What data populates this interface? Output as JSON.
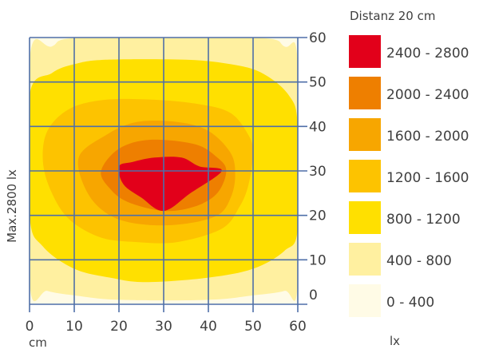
{
  "chart_data": {
    "type": "heatmap",
    "title": "",
    "legend_title": "Distanz 20 cm",
    "legend_unit": "lx",
    "ylabel": "Max.2800 lx",
    "x_unit_label": "cm",
    "x_ticks": [
      "0",
      "10",
      "20",
      "30",
      "40",
      "50",
      "60"
    ],
    "y_ticks": [
      "0",
      "10",
      "20",
      "30",
      "40",
      "50",
      "60"
    ],
    "xlim": [
      0,
      60
    ],
    "ylim": [
      0,
      60
    ],
    "grid": true,
    "legend_position": "right",
    "max_value": 2800,
    "levels": [
      {
        "label": "2400 - 2800",
        "min": 2400,
        "max": 2800,
        "color": "#e2001a"
      },
      {
        "label": "2000 - 2400",
        "min": 2000,
        "max": 2400,
        "color": "#ee7f00"
      },
      {
        "label": "1600 - 2000",
        "min": 1600,
        "max": 2000,
        "color": "#f7a600"
      },
      {
        "label": "1200 - 1600",
        "min": 1200,
        "max": 1600,
        "color": "#fdc300"
      },
      {
        "label": "800 - 1200",
        "min": 800,
        "max": 1200,
        "color": "#ffe000"
      },
      {
        "label": "400 - 800",
        "min": 400,
        "max": 800,
        "color": "#fff0a0"
      },
      {
        "label": "0 - 400",
        "min": 0,
        "max": 400,
        "color": "#fffbe6"
      }
    ],
    "contours": [
      {
        "range": "0 - 400",
        "points": [
          [
            0,
            -2
          ],
          [
            60,
            -2
          ],
          [
            60,
            60
          ],
          [
            0,
            60
          ]
        ]
      },
      {
        "range": "400 - 800",
        "points": [
          [
            0,
            55
          ],
          [
            5,
            58
          ],
          [
            12,
            60
          ],
          [
            50,
            60
          ],
          [
            57,
            58
          ],
          [
            60,
            54
          ],
          [
            60,
            5
          ],
          [
            57,
            3
          ],
          [
            50,
            2
          ],
          [
            40,
            1
          ],
          [
            20,
            1
          ],
          [
            10,
            2
          ],
          [
            4,
            3
          ],
          [
            0,
            5
          ]
        ]
      },
      {
        "range": "800 - 1200",
        "points": [
          [
            0,
            47
          ],
          [
            5,
            52
          ],
          [
            10,
            54
          ],
          [
            17,
            55
          ],
          [
            35,
            55
          ],
          [
            45,
            54
          ],
          [
            52,
            52
          ],
          [
            58,
            47
          ],
          [
            60,
            40
          ],
          [
            60,
            17
          ],
          [
            57,
            12
          ],
          [
            50,
            8
          ],
          [
            40,
            6
          ],
          [
            26,
            5
          ],
          [
            18,
            6
          ],
          [
            10,
            8
          ],
          [
            3,
            13
          ],
          [
            0,
            20
          ]
        ]
      },
      {
        "range": "1200 - 1600",
        "points": [
          [
            4,
            39
          ],
          [
            9,
            44
          ],
          [
            17,
            46
          ],
          [
            28,
            46
          ],
          [
            38,
            45
          ],
          [
            45,
            43
          ],
          [
            49,
            38
          ],
          [
            50,
            34
          ],
          [
            49,
            27
          ],
          [
            47,
            22
          ],
          [
            43,
            17
          ],
          [
            33,
            14
          ],
          [
            24,
            14
          ],
          [
            16,
            15
          ],
          [
            9,
            19
          ],
          [
            5,
            25
          ],
          [
            3,
            32
          ]
        ]
      },
      {
        "range": "1600 - 2000",
        "points": [
          [
            11,
            33
          ],
          [
            17,
            38
          ],
          [
            24,
            41
          ],
          [
            33,
            41
          ],
          [
            40,
            39
          ],
          [
            45,
            34
          ],
          [
            46,
            29
          ],
          [
            45,
            24
          ],
          [
            42,
            20
          ],
          [
            34,
            18
          ],
          [
            25,
            18
          ],
          [
            18,
            20
          ],
          [
            13,
            25
          ]
        ]
      },
      {
        "range": "2000 - 2400",
        "points": [
          [
            16,
            30
          ],
          [
            20,
            35
          ],
          [
            27,
            37
          ],
          [
            37,
            36
          ],
          [
            42,
            33
          ],
          [
            44,
            30
          ],
          [
            42,
            25
          ],
          [
            37,
            22
          ],
          [
            30,
            21
          ],
          [
            22,
            23
          ],
          [
            18,
            26
          ]
        ]
      },
      {
        "range": "2400 - 2800",
        "points": [
          [
            20,
            31
          ],
          [
            23,
            32
          ],
          [
            28,
            33
          ],
          [
            34,
            33
          ],
          [
            38,
            31
          ],
          [
            43,
            30
          ],
          [
            36,
            25
          ],
          [
            30,
            21
          ],
          [
            25,
            24
          ],
          [
            21,
            27
          ]
        ]
      }
    ]
  }
}
